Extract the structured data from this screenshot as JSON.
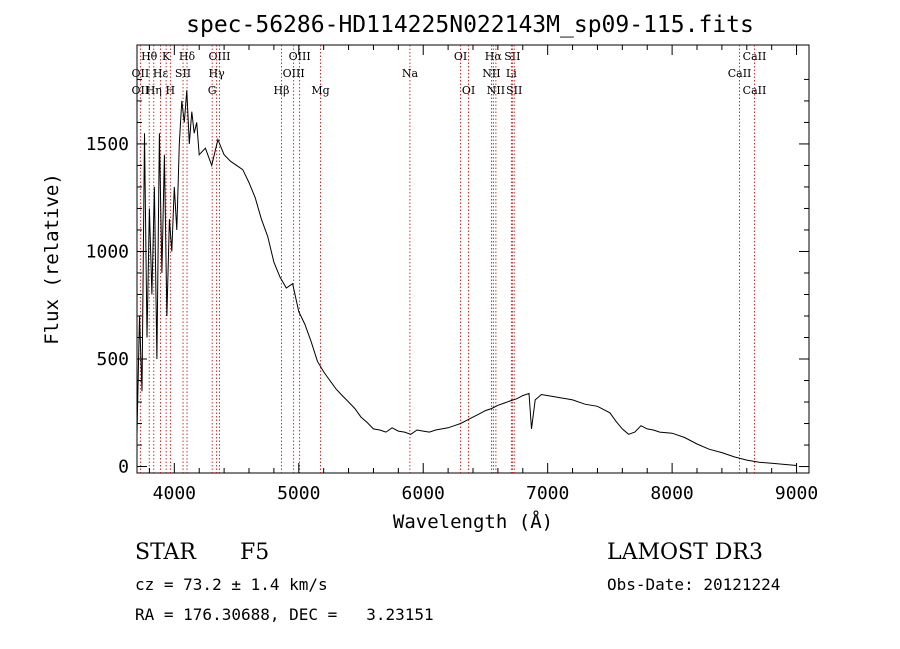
{
  "chart_data": {
    "type": "line",
    "title": "spec-56286-HD114225N022143M_sp09-115.fits",
    "xlabel": "Wavelength (Å)",
    "ylabel": "Flux (relative)",
    "xlim": [
      3700,
      9100
    ],
    "ylim": [
      -30,
      1960
    ],
    "xticks": [
      4000,
      5000,
      6000,
      7000,
      8000,
      9000
    ],
    "xtick_labels": [
      "4000",
      "5000",
      "6000",
      "7000",
      "8000",
      "9000"
    ],
    "yticks": [
      0,
      500,
      1000,
      1500
    ],
    "ytick_labels": [
      "0",
      "500",
      "1000",
      "1500"
    ],
    "grid": false,
    "series": [
      {
        "x": [
          3700,
          3720,
          3740,
          3760,
          3780,
          3800,
          3820,
          3840,
          3860,
          3880,
          3900,
          3920,
          3940,
          3960,
          3980,
          4000,
          4020,
          4040,
          4060,
          4080,
          4100,
          4120,
          4140,
          4160,
          4180,
          4200,
          4250,
          4300,
          4350,
          4400,
          4450,
          4500,
          4550,
          4600,
          4650,
          4700,
          4750,
          4800,
          4850,
          4900,
          4950,
          5000,
          5050,
          5100,
          5150,
          5200,
          5250,
          5300,
          5350,
          5400,
          5450,
          5500,
          5550,
          5600,
          5650,
          5700,
          5750,
          5800,
          5850,
          5900,
          5950,
          6000,
          6050,
          6100,
          6150,
          6200,
          6250,
          6300,
          6350,
          6400,
          6450,
          6500,
          6550,
          6600,
          6650,
          6700,
          6750,
          6800,
          6850,
          6870,
          6900,
          6950,
          7000,
          7050,
          7100,
          7150,
          7200,
          7300,
          7400,
          7500,
          7550,
          7600,
          7650,
          7700,
          7750,
          7800,
          7850,
          7900,
          8000,
          8100,
          8200,
          8300,
          8400,
          8500,
          8600,
          8700,
          8800,
          8900,
          9000
        ],
        "y": [
          150,
          700,
          350,
          1550,
          600,
          1200,
          800,
          1300,
          500,
          1550,
          900,
          1450,
          700,
          1150,
          1000,
          1300,
          1100,
          1500,
          1700,
          1600,
          1750,
          1500,
          1650,
          1550,
          1600,
          1450,
          1480,
          1400,
          1520,
          1450,
          1420,
          1400,
          1380,
          1320,
          1250,
          1150,
          1070,
          950,
          880,
          830,
          850,
          720,
          660,
          580,
          490,
          440,
          400,
          360,
          330,
          300,
          270,
          230,
          205,
          175,
          170,
          160,
          180,
          165,
          160,
          150,
          170,
          165,
          160,
          170,
          175,
          180,
          190,
          200,
          215,
          230,
          245,
          260,
          270,
          285,
          295,
          305,
          315,
          330,
          340,
          175,
          310,
          335,
          330,
          325,
          320,
          315,
          310,
          290,
          280,
          250,
          210,
          175,
          150,
          160,
          190,
          175,
          170,
          160,
          155,
          135,
          105,
          80,
          65,
          45,
          30,
          20,
          15,
          10,
          5
        ]
      }
    ],
    "line_markers": [
      {
        "label": "Hθ",
        "x": 3798,
        "row": 0
      },
      {
        "label": "OII",
        "x": 3727,
        "row": 1
      },
      {
        "label": "OII",
        "x": 3727,
        "row": 2
      },
      {
        "label": "K",
        "x": 3934,
        "row": 0
      },
      {
        "label": "Hε",
        "x": 3889,
        "row": 1
      },
      {
        "label": "Hη",
        "x": 3835,
        "row": 2
      },
      {
        "label": "Hδ",
        "x": 4102,
        "row": 0
      },
      {
        "label": "SII",
        "x": 4070,
        "row": 1
      },
      {
        "label": "H",
        "x": 3968,
        "row": 2
      },
      {
        "label": "OIII",
        "x": 4363,
        "row": 0
      },
      {
        "label": "Hγ",
        "x": 4340,
        "row": 1
      },
      {
        "label": "G",
        "x": 4304,
        "row": 2
      },
      {
        "label": "Hβ",
        "x": 4861,
        "row": 2
      },
      {
        "label": "OIII",
        "x": 5007,
        "row": 0
      },
      {
        "label": "OIII",
        "x": 4959,
        "row": 1
      },
      {
        "label": "Mg",
        "x": 5175,
        "row": 2
      },
      {
        "label": "Na",
        "x": 5893,
        "row": 1
      },
      {
        "label": "OI",
        "x": 6300,
        "row": 0
      },
      {
        "label": "OI",
        "x": 6364,
        "row": 2
      },
      {
        "label": "Hα",
        "x": 6563,
        "row": 0
      },
      {
        "label": "SII",
        "x": 6716,
        "row": 0
      },
      {
        "label": "NII",
        "x": 6548,
        "row": 1
      },
      {
        "label": "Li",
        "x": 6708,
        "row": 1
      },
      {
        "label": "NII",
        "x": 6584,
        "row": 2
      },
      {
        "label": "SII",
        "x": 6731,
        "row": 2
      },
      {
        "label": "CaII",
        "x": 8662,
        "row": 0
      },
      {
        "label": "CaII",
        "x": 8542,
        "row": 1
      },
      {
        "label": "CaII",
        "x": 8662,
        "row": 2
      }
    ]
  },
  "info": {
    "object_class": "STAR",
    "subclass": "F5",
    "survey": "LAMOST DR3",
    "cz": "cz = 73.2 ± 1.4 km/s",
    "obs_date": "Obs-Date: 20121224",
    "coords": "RA = 176.30688, DEC =   3.23151"
  }
}
